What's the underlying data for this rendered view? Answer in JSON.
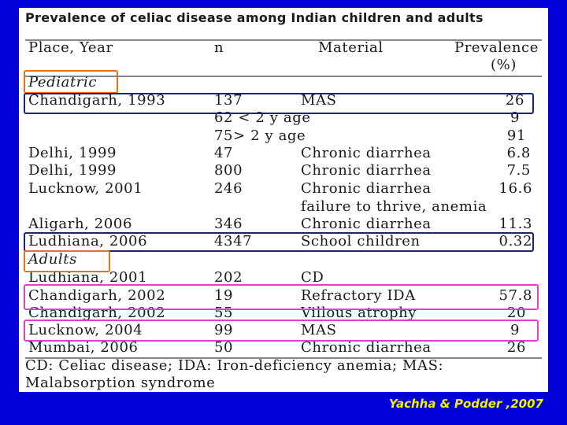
{
  "title": "Prevalence of celiac disease among Indian children and adults",
  "headers": {
    "place": "Place, Year",
    "n": "n",
    "material": "Material",
    "prevalence": "Prevalence",
    "unit": "(%)"
  },
  "sections": {
    "pediatric": "Pediatric",
    "adults": "Adults"
  },
  "rows": [
    {
      "place": "Chandigarh, 1993",
      "n": "137",
      "material": "MAS",
      "prevalence": "26"
    },
    {
      "place": "",
      "n": "62 < 2 y age",
      "material": "",
      "prevalence": "9"
    },
    {
      "place": "",
      "n": "75> 2 y age",
      "material": "",
      "prevalence": "91"
    },
    {
      "place": "Delhi, 1999",
      "n": "47",
      "material": "Chronic diarrhea",
      "prevalence": "6.8"
    },
    {
      "place": "Delhi, 1999",
      "n": "800",
      "material": "Chronic diarrhea",
      "prevalence": "7.5"
    },
    {
      "place": "Lucknow, 2001",
      "n": "246",
      "material": "Chronic diarrhea",
      "prevalence": "16.6"
    },
    {
      "place": "",
      "n": "",
      "material": "failure to thrive, anemia",
      "prevalence": ""
    },
    {
      "place": "Aligarh, 2006",
      "n": "346",
      "material": "Chronic diarrhea",
      "prevalence": "11.3"
    },
    {
      "place": "Ludhiana, 2006",
      "n": "4347",
      "material": "School children",
      "prevalence": "0.32"
    },
    {
      "place": "Ludhiana, 2001",
      "n": "202",
      "material": "CD",
      "prevalence": ""
    },
    {
      "place": "Chandigarh, 2002",
      "n": "19",
      "material": "Refractory IDA",
      "prevalence": "57.8"
    },
    {
      "place": "Chandigarh, 2002",
      "n": "55",
      "material": "Villous atrophy",
      "prevalence": "20"
    },
    {
      "place": "Lucknow, 2004",
      "n": "99",
      "material": "MAS",
      "prevalence": "9"
    },
    {
      "place": "Mumbai, 2006",
      "n": "50",
      "material": "Chronic diarrhea",
      "prevalence": "26"
    }
  ],
  "footnote": {
    "line1": "CD: Celiac disease; IDA: Iron-deficiency anemia; MAS:",
    "line2": "Malabsorption syndrome"
  },
  "citation": "Yachha & Podder ,2007"
}
